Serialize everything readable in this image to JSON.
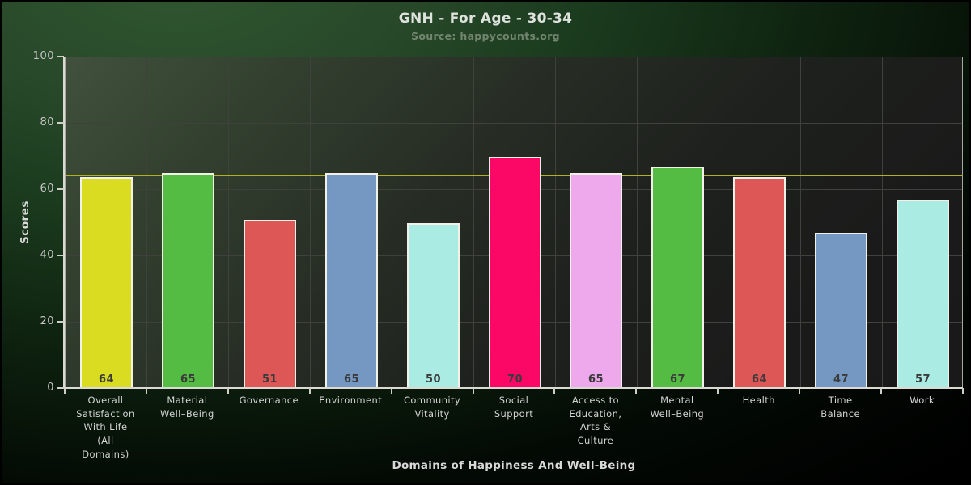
{
  "header": {
    "title": "GNH - For Age - 30-34",
    "subtitle": "Source: happycounts.org"
  },
  "chart_data": {
    "type": "bar",
    "title": "GNH - For Age - 30-34",
    "subtitle": "Source: happycounts.org",
    "xlabel": "Domains of Happiness And Well-Being",
    "ylabel": "Scores",
    "ylim": [
      0,
      100
    ],
    "yticks": [
      0,
      20,
      40,
      60,
      80,
      100
    ],
    "grid": true,
    "legend": null,
    "categories": [
      "Overall Satisfaction With Life (All Domains)",
      "Material Well-Being",
      "Governance",
      "Environment",
      "Community Vitality",
      "Social Support",
      "Access to Education, Arts & Culture",
      "Mental Well-Being",
      "Health",
      "Time Balance",
      "Work"
    ],
    "categories_wrapped": [
      "Overall\nSatisfaction\nWith Life\n(All\nDomains)",
      "Material\nWell–Being",
      "Governance",
      "Environment",
      "Community\nVitality",
      "Social\nSupport",
      "Access to\nEducation,\nArts &\nCulture",
      "Mental\nWell–Being",
      "Health",
      "Time\nBalance",
      "Work"
    ],
    "values": [
      64,
      65,
      51,
      65,
      50,
      70,
      65,
      67,
      64,
      47,
      57
    ],
    "bar_colors": [
      "#d9dc21",
      "#54bc43",
      "#dd5757",
      "#7498c1",
      "#aaece4",
      "#fb0766",
      "#eda9ec",
      "#54bc43",
      "#dd5757",
      "#7498c1",
      "#aaece4"
    ],
    "reference_line": {
      "value": 64.5,
      "color": "#b1b222"
    }
  },
  "colors": {
    "background_top": "#30572f",
    "background_bottom": "#000000",
    "axis": "#dadad2",
    "gridline": "#3f413d",
    "bar_border": "#f1f1e8",
    "value_label": "#3b3b3b",
    "tick_label": "#c6c6c6",
    "category_label": "#d3d3d3",
    "title_text": "#dde2dd",
    "subtitle_text": "#72856f"
  }
}
